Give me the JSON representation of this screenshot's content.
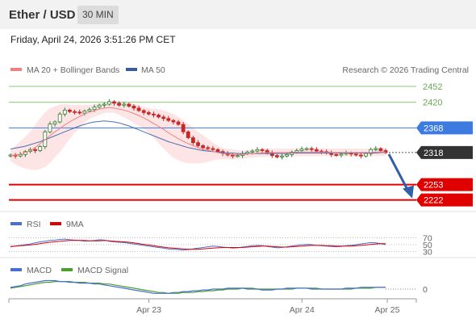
{
  "header": {
    "title": "Ether / USD",
    "timeframe": "30 MIN",
    "timestamp": "Friday, April 24, 2026 3:51:26 PM CET"
  },
  "legend": {
    "ma20_label": "MA 20 + Bollinger Bands",
    "ma50_label": "MA 50",
    "credit": "Research © 2026 Trading Central"
  },
  "colors": {
    "ma20": "#f08080",
    "ma50": "#4a6fb5",
    "bollinger_fill": "#fde0e0",
    "green_level": "#8dc873",
    "blue_level": "#3d7be0",
    "red_level": "#e00000",
    "price_tag": "#333333",
    "arrow": "#2f5fa8",
    "rsi": "#4a6fd4",
    "rsi_9ma": "#e00000",
    "macd": "#4a6fd4",
    "macd_signal": "#4aa02c",
    "candle_up": "#2e7d32",
    "candle_down": "#c62828"
  },
  "chart_data": {
    "type": "candlestick",
    "instrument": "Ether / USD",
    "interval": "30 MIN",
    "ylim": [
      2205,
      2470
    ],
    "levels": [
      {
        "value": 2452,
        "label": "2452",
        "kind": "resistance"
      },
      {
        "value": 2420,
        "label": "2420",
        "kind": "resistance"
      },
      {
        "value": 2368,
        "label": "2368",
        "kind": "pivot"
      },
      {
        "value": 2318,
        "label": "2318",
        "kind": "last_price"
      },
      {
        "value": 2253,
        "label": "2253",
        "kind": "support"
      },
      {
        "value": 2222,
        "label": "2222",
        "kind": "support"
      }
    ],
    "x_ticks": [
      "Apr 23",
      "Apr 24",
      "Apr 25"
    ],
    "close_series": [
      2313,
      2311,
      2314,
      2320,
      2324,
      2322,
      2330,
      2360,
      2376,
      2380,
      2396,
      2404,
      2401,
      2400,
      2398,
      2402,
      2405,
      2410,
      2414,
      2416,
      2421,
      2418,
      2414,
      2416,
      2412,
      2408,
      2403,
      2399,
      2396,
      2394,
      2390,
      2387,
      2383,
      2380,
      2375,
      2360,
      2348,
      2338,
      2332,
      2328,
      2326,
      2324,
      2320,
      2316,
      2313,
      2311,
      2312,
      2316,
      2319,
      2321,
      2324,
      2322,
      2317,
      2312,
      2309,
      2311,
      2314,
      2319,
      2322,
      2325,
      2326,
      2324,
      2321,
      2320,
      2317,
      2314,
      2313,
      2315,
      2317,
      2315,
      2313,
      2311,
      2316,
      2324,
      2326,
      2322,
      2318
    ],
    "ma20": [
      2312,
      2313,
      2315,
      2318,
      2322,
      2328,
      2336,
      2344,
      2352,
      2360,
      2367,
      2374,
      2380,
      2386,
      2391,
      2396,
      2400,
      2403,
      2406,
      2408,
      2409,
      2408,
      2406,
      2404,
      2401,
      2397,
      2393,
      2388,
      2383,
      2377,
      2371,
      2365,
      2358,
      2352,
      2346,
      2341,
      2336,
      2332,
      2328,
      2325,
      2323,
      2320,
      2318,
      2316,
      2315,
      2314,
      2314,
      2314,
      2315,
      2316,
      2317,
      2317,
      2318,
      2318,
      2318,
      2318,
      2318,
      2318,
      2319,
      2319,
      2319,
      2319,
      2319,
      2319,
      2319,
      2318,
      2318,
      2318,
      2318,
      2318,
      2318,
      2318,
      2318,
      2318,
      2319,
      2319,
      2319
    ],
    "ma50": [
      2325,
      2327,
      2329,
      2331,
      2334,
      2337,
      2340,
      2344,
      2348,
      2352,
      2356,
      2360,
      2364,
      2368,
      2372,
      2375,
      2378,
      2380,
      2381,
      2382,
      2381,
      2380,
      2378,
      2375,
      2372,
      2368,
      2364,
      2360,
      2356,
      2352,
      2348,
      2344,
      2340,
      2337,
      2334,
      2331,
      2328,
      2326,
      2324,
      2322,
      2321,
      2320,
      2319,
      2318,
      2317,
      2317,
      2316,
      2316,
      2316,
      2316,
      2316,
      2316,
      2316,
      2316,
      2316,
      2316,
      2316,
      2317,
      2317,
      2317,
      2317,
      2317,
      2317,
      2317,
      2317,
      2317,
      2317,
      2317,
      2317,
      2317,
      2317,
      2317,
      2317,
      2317,
      2317,
      2318,
      2318
    ],
    "rsi": {
      "label": "RSI",
      "ma_label": "9MA",
      "levels": [
        70,
        50,
        30
      ],
      "values": [
        44,
        46,
        48,
        50,
        52,
        55,
        58,
        60,
        62,
        63,
        65,
        66,
        64,
        63,
        62,
        60,
        61,
        62,
        64,
        63,
        60,
        58,
        57,
        56,
        54,
        52,
        50,
        48,
        46,
        44,
        42,
        40,
        38,
        37,
        36,
        35,
        36,
        38,
        40,
        42,
        44,
        46,
        45,
        43,
        42,
        40,
        41,
        43,
        45,
        47,
        48,
        47,
        45,
        43,
        41,
        42,
        44,
        46,
        48,
        50,
        51,
        50,
        48,
        47,
        46,
        45,
        44,
        45,
        47,
        48,
        50,
        52,
        54,
        56,
        55,
        53,
        50
      ],
      "ma_values": [
        45,
        46,
        47,
        48,
        49,
        51,
        53,
        55,
        57,
        58,
        60,
        61,
        62,
        62,
        62,
        62,
        61,
        61,
        61,
        62,
        61,
        60,
        59,
        58,
        57,
        55,
        53,
        51,
        49,
        47,
        45,
        43,
        41,
        40,
        39,
        38,
        37,
        37,
        37,
        38,
        39,
        40,
        41,
        42,
        42,
        42,
        42,
        42,
        43,
        44,
        45,
        46,
        46,
        45,
        44,
        43,
        43,
        44,
        45,
        46,
        47,
        48,
        48,
        48,
        47,
        47,
        46,
        46,
        46,
        46,
        47,
        48,
        49,
        51,
        52,
        53,
        53
      ]
    },
    "macd": {
      "label": "MACD",
      "signal_label": "MACD Signal",
      "zero_label": "0",
      "values": [
        2,
        3,
        4,
        6,
        7,
        8,
        9,
        10,
        10,
        10,
        9,
        9,
        8,
        8,
        7,
        7,
        7,
        6,
        6,
        5,
        4,
        3,
        2,
        1,
        0,
        -1,
        -2,
        -3,
        -4,
        -5,
        -5,
        -5,
        -5,
        -4,
        -4,
        -3,
        -3,
        -2,
        -2,
        -1,
        -1,
        0,
        0,
        0,
        1,
        1,
        1,
        1,
        0,
        0,
        0,
        -1,
        -1,
        -1,
        0,
        0,
        1,
        1,
        1,
        1,
        1,
        0,
        0,
        0,
        0,
        0,
        0,
        0,
        1,
        1,
        1,
        2,
        2,
        2,
        2,
        2,
        2
      ],
      "signal_values": [
        1,
        2,
        3,
        4,
        5,
        6,
        7,
        8,
        8,
        9,
        9,
        9,
        9,
        8,
        8,
        8,
        7,
        7,
        7,
        6,
        6,
        5,
        4,
        3,
        2,
        1,
        0,
        -1,
        -2,
        -3,
        -4,
        -4,
        -5,
        -5,
        -5,
        -4,
        -4,
        -4,
        -3,
        -3,
        -2,
        -2,
        -1,
        -1,
        0,
        0,
        0,
        1,
        1,
        1,
        0,
        0,
        0,
        0,
        0,
        0,
        0,
        0,
        1,
        1,
        1,
        1,
        1,
        0,
        0,
        0,
        0,
        0,
        0,
        0,
        1,
        1,
        1,
        1,
        2,
        2,
        2
      ]
    }
  }
}
